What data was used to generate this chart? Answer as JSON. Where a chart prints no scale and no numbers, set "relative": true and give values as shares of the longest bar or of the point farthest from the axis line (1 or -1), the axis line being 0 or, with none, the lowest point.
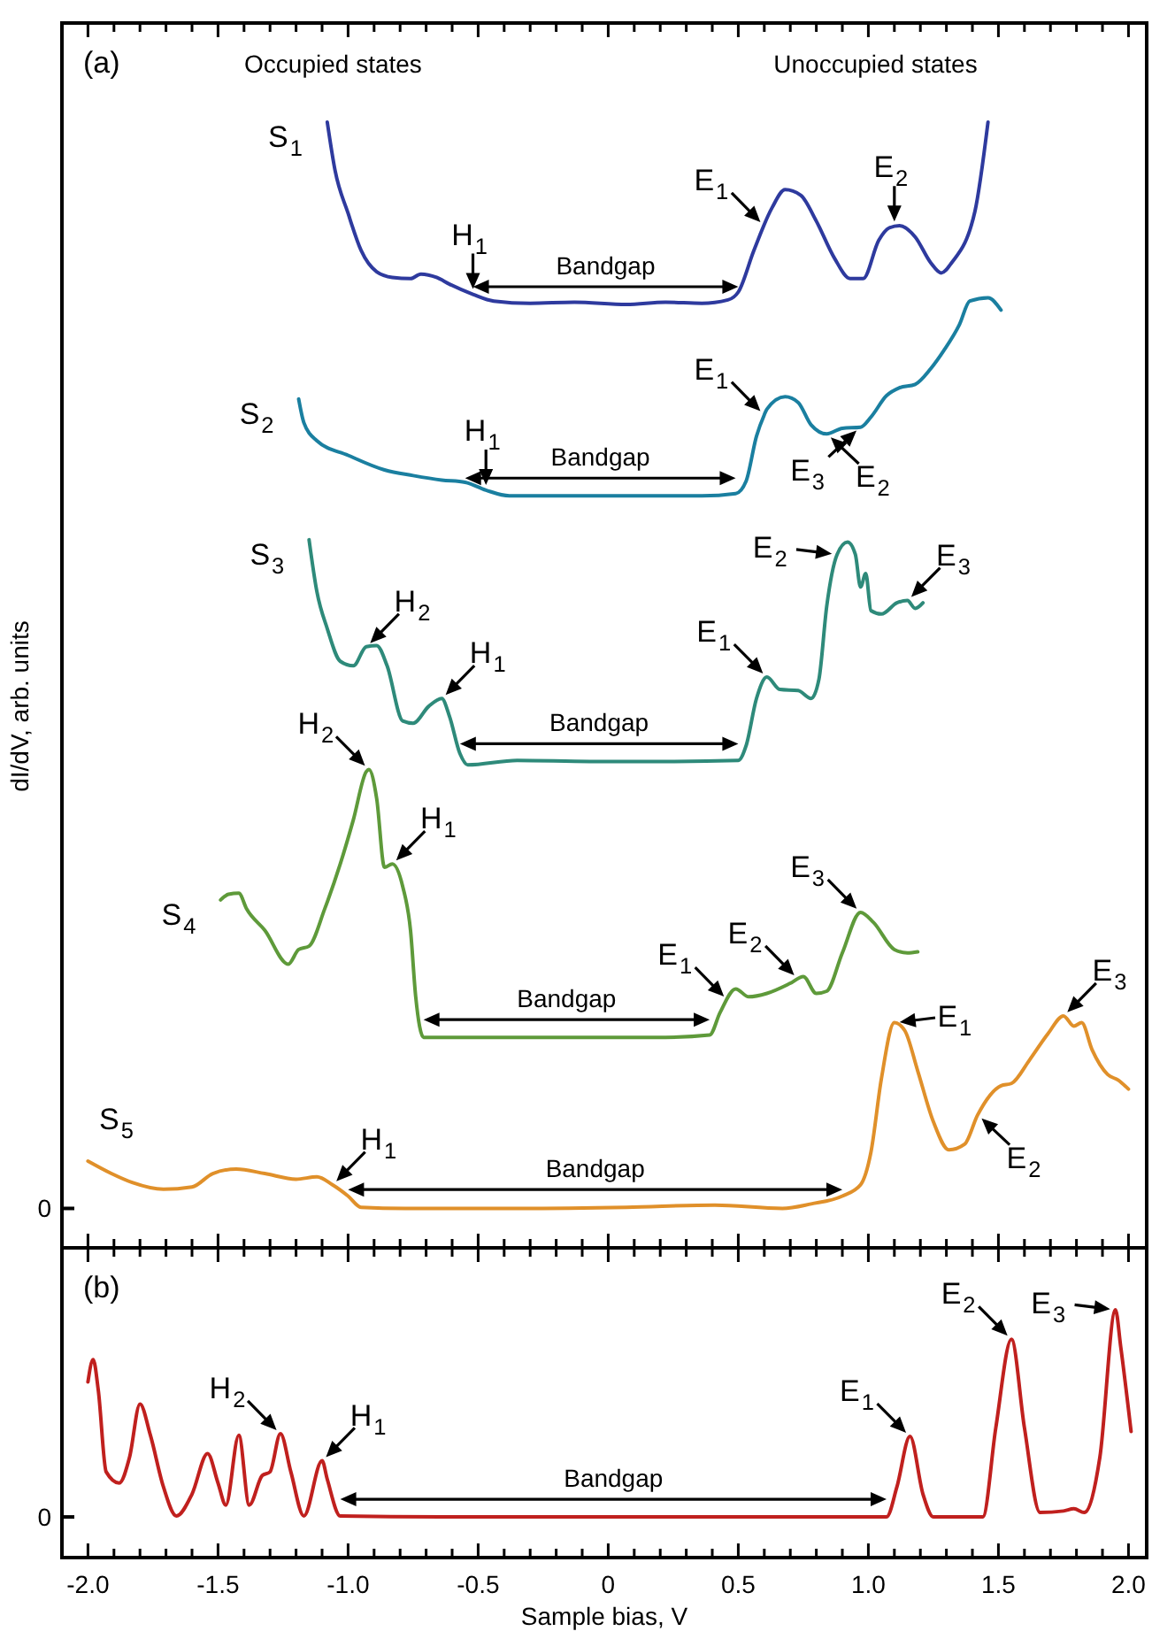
{
  "chart_data": [
    {
      "type": "line",
      "relative": true,
      "tick_labels": false,
      "ylabel": "dI/dV, arb. units",
      "xlim": [
        -2.1,
        2.07
      ],
      "xticks": [
        {
          "value": -2,
          "label": null
        },
        {
          "value": -1.9,
          "label": null
        },
        {
          "value": -1.8,
          "label": null
        },
        {
          "value": -1.7,
          "label": null
        },
        {
          "value": -1.6,
          "label": null
        },
        {
          "value": -1.5,
          "label": null
        },
        {
          "value": -1.4,
          "label": null
        },
        {
          "value": -1.3,
          "label": null
        },
        {
          "value": -1.2,
          "label": null
        },
        {
          "value": -1.1,
          "label": null
        },
        {
          "value": -1,
          "label": null
        },
        {
          "value": -0.9,
          "label": null
        },
        {
          "value": -0.8,
          "label": null
        },
        {
          "value": -0.7,
          "label": null
        },
        {
          "value": -0.6,
          "label": null
        },
        {
          "value": -0.5,
          "label": null
        },
        {
          "value": -0.4,
          "label": null
        },
        {
          "value": -0.3,
          "label": null
        },
        {
          "value": -0.2,
          "label": null
        },
        {
          "value": -0.1,
          "label": null
        },
        {
          "value": 0,
          "label": null
        },
        {
          "value": 0.1,
          "label": null
        },
        {
          "value": 0.2,
          "label": null
        },
        {
          "value": 0.3,
          "label": null
        },
        {
          "value": 0.4,
          "label": null
        },
        {
          "value": 0.5,
          "label": null
        },
        {
          "value": 0.6,
          "label": null
        },
        {
          "value": 0.7,
          "label": null
        },
        {
          "value": 0.8,
          "label": null
        },
        {
          "value": 0.9,
          "label": null
        },
        {
          "value": 1,
          "label": null
        },
        {
          "value": 1.1,
          "label": null
        },
        {
          "value": 1.2,
          "label": null
        },
        {
          "value": 1.3,
          "label": null
        },
        {
          "value": 1.4,
          "label": null
        },
        {
          "value": 1.5,
          "label": null
        },
        {
          "value": 1.6,
          "label": null
        },
        {
          "value": 1.7,
          "label": null
        },
        {
          "value": 1.8,
          "label": null
        },
        {
          "value": 1.9,
          "label": null
        },
        {
          "value": 2,
          "label": null
        }
      ],
      "series": [
        {
          "name": "S$_{1}$",
          "color": "#2e3a9e",
          "x": [
            -1.08,
            -1.05,
            -1.0,
            -0.95,
            -0.89,
            -0.83,
            -0.76,
            -0.72,
            -0.66,
            -0.61,
            -0.52,
            -0.44,
            -0.3,
            -0.13,
            0.07,
            0.22,
            0.36,
            0.46,
            0.5,
            0.56,
            0.63,
            0.68,
            0.74,
            0.8,
            0.87,
            0.93,
            0.98,
            1.04,
            1.08,
            1.12,
            1.18,
            1.24,
            1.28,
            1.32,
            1.41,
            1.46
          ],
          "values": [
            1.0,
            0.957,
            0.919,
            0.886,
            0.867,
            0.862,
            0.861,
            0.865,
            0.862,
            0.856,
            0.847,
            0.841,
            0.839,
            0.84,
            0.838,
            0.84,
            0.839,
            0.842,
            0.849,
            0.886,
            0.924,
            0.94,
            0.935,
            0.912,
            0.879,
            0.861,
            0.861,
            0.895,
            0.906,
            0.908,
            0.898,
            0.875,
            0.866,
            0.875,
            0.921,
            1.0
          ]
        },
        {
          "name": "S$_{2}$",
          "color": "#1a7fa0",
          "x": [
            -1.19,
            -1.17,
            -1.12,
            -1.0,
            -0.86,
            -0.75,
            -0.64,
            -0.55,
            -0.47,
            -0.38,
            -0.21,
            0.07,
            0.36,
            0.49,
            0.53,
            0.57,
            0.6,
            0.61,
            0.68,
            0.73,
            0.78,
            0.84,
            0.9,
            0.97,
            1.01,
            1.07,
            1.12,
            1.18,
            1.24,
            1.29,
            1.35,
            1.39,
            1.46,
            1.51
          ],
          "values": [
            0.754,
            0.733,
            0.717,
            0.704,
            0.691,
            0.686,
            0.682,
            0.68,
            0.673,
            0.668,
            0.668,
            0.668,
            0.668,
            0.67,
            0.681,
            0.721,
            0.74,
            0.745,
            0.756,
            0.751,
            0.731,
            0.723,
            0.728,
            0.729,
            0.738,
            0.757,
            0.764,
            0.767,
            0.781,
            0.797,
            0.82,
            0.841,
            0.844,
            0.833
          ]
        },
        {
          "name": "S$_{3}$",
          "color": "#2e8a7a",
          "x": [
            -1.15,
            -1.12,
            -1.08,
            -1.03,
            -0.98,
            -0.93,
            -0.89,
            -0.85,
            -0.79,
            -0.75,
            -0.69,
            -0.64,
            -0.61,
            -0.57,
            -0.54,
            -0.35,
            -0.07,
            0.22,
            0.5,
            0.53,
            0.57,
            0.61,
            0.66,
            0.73,
            0.78,
            0.81,
            0.84,
            0.88,
            0.92,
            0.95,
            0.97,
            0.99,
            1.01,
            1.05,
            1.11,
            1.15,
            1.18,
            1.21
          ],
          "values": [
            0.629,
            0.583,
            0.55,
            0.521,
            0.517,
            0.534,
            0.535,
            0.517,
            0.468,
            0.466,
            0.481,
            0.488,
            0.472,
            0.439,
            0.429,
            0.433,
            0.432,
            0.432,
            0.433,
            0.446,
            0.488,
            0.507,
            0.496,
            0.495,
            0.488,
            0.505,
            0.57,
            0.616,
            0.627,
            0.616,
            0.587,
            0.599,
            0.566,
            0.563,
            0.573,
            0.575,
            0.568,
            0.573
          ]
        },
        {
          "name": "S$_{4}$",
          "color": "#5e9a3a",
          "x": [
            -1.49,
            -1.46,
            -1.42,
            -1.39,
            -1.32,
            -1.23,
            -1.19,
            -1.15,
            -1.09,
            -1.03,
            -0.98,
            -0.93,
            -0.92,
            -0.89,
            -0.86,
            -0.83,
            -0.79,
            -0.76,
            -0.74,
            -0.71,
            -0.49,
            -0.07,
            0.22,
            0.39,
            0.43,
            0.49,
            0.54,
            0.61,
            0.7,
            0.75,
            0.8,
            0.84,
            0.9,
            0.97,
            1.02,
            1.1,
            1.15,
            1.19
          ],
          "values": [
            0.309,
            0.314,
            0.315,
            0.301,
            0.282,
            0.252,
            0.265,
            0.268,
            0.301,
            0.341,
            0.38,
            0.423,
            0.425,
            0.399,
            0.338,
            0.341,
            0.321,
            0.282,
            0.223,
            0.187,
            0.187,
            0.187,
            0.187,
            0.189,
            0.209,
            0.23,
            0.223,
            0.226,
            0.235,
            0.241,
            0.226,
            0.228,
            0.262,
            0.298,
            0.289,
            0.265,
            0.262,
            0.263
          ]
        },
        {
          "name": "S$_{5}$",
          "color": "#e0902a",
          "x": [
            -2.0,
            -1.91,
            -1.83,
            -1.71,
            -1.6,
            -1.52,
            -1.43,
            -1.32,
            -1.2,
            -1.12,
            -1.06,
            -1.0,
            -0.95,
            -0.78,
            -0.35,
            0.07,
            0.41,
            0.67,
            0.78,
            0.9,
            0.97,
            1.01,
            1.05,
            1.1,
            1.14,
            1.19,
            1.25,
            1.31,
            1.37,
            1.42,
            1.51,
            1.55,
            1.62,
            1.69,
            1.75,
            1.79,
            1.82,
            1.86,
            1.92,
            1.96,
            2.0
          ],
          "values": [
            0.077,
            0.066,
            0.058,
            0.052,
            0.054,
            0.066,
            0.07,
            0.066,
            0.061,
            0.063,
            0.056,
            0.046,
            0.036,
            0.035,
            0.035,
            0.036,
            0.038,
            0.035,
            0.039,
            0.046,
            0.056,
            0.085,
            0.15,
            0.2,
            0.193,
            0.157,
            0.112,
            0.087,
            0.092,
            0.118,
            0.144,
            0.146,
            0.167,
            0.19,
            0.206,
            0.197,
            0.2,
            0.176,
            0.154,
            0.149,
            0.141
          ]
        }
      ],
      "annotations": [
        "(a)",
        "Occupied states",
        "Unoccupied states",
        "0",
        {
          "text": "Bandgap",
          "x": 0.07,
          "y": 0.838
        },
        {
          "text": "Bandgap",
          "x": 0.07,
          "y": 0.668
        },
        {
          "text": "Bandgap",
          "x": -0.07,
          "y": 0.432
        },
        {
          "text": "Bandgap",
          "x": -0.07,
          "y": 0.187
        },
        {
          "text": "Bandgap",
          "x": 0.07,
          "y": 0.036
        },
        {
          "text": "H$_{1}$",
          "x": -0.52,
          "y": 0.847
        },
        {
          "text": "E$_{1}$",
          "x": 0.6,
          "y": 0.908
        },
        {
          "text": "E$_{2}$",
          "x": 1.1,
          "y": 0.907
        },
        {
          "text": "H$_{1}$",
          "x": -0.47,
          "y": 0.673
        },
        {
          "text": "E$_{1}$",
          "x": 0.6,
          "y": 0.74
        },
        {
          "text": "E$_{2}$",
          "x": 0.84,
          "y": 0.723
        },
        {
          "text": "E$_{3}$",
          "x": 0.97,
          "y": 0.729
        },
        {
          "text": "H$_{2}$",
          "x": -0.93,
          "y": 0.534
        },
        {
          "text": "H$_{1}$",
          "x": -0.64,
          "y": 0.488
        },
        {
          "text": "E$_{1}$",
          "x": 0.61,
          "y": 0.507
        },
        {
          "text": "E$_{2}$",
          "x": 0.88,
          "y": 0.616
        },
        {
          "text": "E$_{3}$",
          "x": 1.15,
          "y": 0.575
        },
        {
          "text": "H$_{2}$",
          "x": -0.92,
          "y": 0.425
        },
        {
          "text": "H$_{1}$",
          "x": -0.83,
          "y": 0.341
        },
        {
          "text": "E$_{1}$",
          "x": 0.46,
          "y": 0.22
        },
        {
          "text": "E$_{2}$",
          "x": 0.73,
          "y": 0.239
        },
        {
          "text": "E$_{3}$",
          "x": 0.97,
          "y": 0.298
        },
        {
          "text": "H$_{1}$",
          "x": -1.06,
          "y": 0.056
        },
        {
          "text": "E$_{1}$",
          "x": 1.1,
          "y": 0.2
        },
        {
          "text": "E$_{2}$",
          "x": 1.42,
          "y": 0.118
        },
        {
          "text": "E$_{3}$",
          "x": 1.75,
          "y": 0.206
        }
      ]
    },
    {
      "type": "line",
      "relative": true,
      "tick_labels": "x",
      "xlabel": "Sample bias, V",
      "xlim": [
        -2.1,
        2.07
      ],
      "xticks": [
        {
          "value": -2,
          "label": "-2.0"
        },
        {
          "value": -1.9,
          "label": null
        },
        {
          "value": -1.8,
          "label": null
        },
        {
          "value": -1.7,
          "label": null
        },
        {
          "value": -1.6,
          "label": null
        },
        {
          "value": -1.5,
          "label": "-1.5"
        },
        {
          "value": -1.4,
          "label": null
        },
        {
          "value": -1.3,
          "label": null
        },
        {
          "value": -1.2,
          "label": null
        },
        {
          "value": -1.1,
          "label": null
        },
        {
          "value": -1,
          "label": "-1.0"
        },
        {
          "value": -0.9,
          "label": null
        },
        {
          "value": -0.8,
          "label": null
        },
        {
          "value": -0.7,
          "label": null
        },
        {
          "value": -0.6,
          "label": null
        },
        {
          "value": -0.5,
          "label": "-0.5"
        },
        {
          "value": -0.4,
          "label": null
        },
        {
          "value": -0.3,
          "label": null
        },
        {
          "value": -0.2,
          "label": null
        },
        {
          "value": -0.1,
          "label": null
        },
        0,
        {
          "value": 0.1,
          "label": null
        },
        {
          "value": 0.2,
          "label": null
        },
        {
          "value": 0.3,
          "label": null
        },
        {
          "value": 0.4,
          "label": null
        },
        0.5,
        {
          "value": 0.6,
          "label": null
        },
        {
          "value": 0.7,
          "label": null
        },
        {
          "value": 0.8,
          "label": null
        },
        {
          "value": 0.9,
          "label": null
        },
        {
          "value": 1,
          "label": "1.0"
        },
        {
          "value": 1.1,
          "label": null
        },
        {
          "value": 1.2,
          "label": null
        },
        {
          "value": 1.3,
          "label": null
        },
        {
          "value": 1.4,
          "label": null
        },
        1.5,
        {
          "value": 1.6,
          "label": null
        },
        {
          "value": 1.7,
          "label": null
        },
        {
          "value": 1.8,
          "label": null
        },
        {
          "value": 1.9,
          "label": null
        },
        {
          "value": 2,
          "label": "2.0"
        }
      ],
      "series": [
        {
          "color": "#c0201e",
          "x": [
            -2.0,
            -1.98,
            -1.96,
            -1.93,
            -1.88,
            -1.84,
            -1.8,
            -1.76,
            -1.71,
            -1.66,
            -1.6,
            -1.54,
            -1.5,
            -1.47,
            -1.42,
            -1.38,
            -1.33,
            -1.3,
            -1.26,
            -1.22,
            -1.17,
            -1.1,
            -1.08,
            -1.03,
            -0.64,
            0.0,
            1.07,
            1.11,
            1.16,
            1.21,
            1.25,
            1.44,
            1.49,
            1.55,
            1.6,
            1.66,
            1.75,
            1.79,
            1.83,
            1.89,
            1.95,
            1.97,
            2.01
          ],
          "values": [
            0.709,
            0.799,
            0.673,
            0.346,
            0.301,
            0.405,
            0.62,
            0.494,
            0.286,
            0.168,
            0.256,
            0.42,
            0.301,
            0.212,
            0.494,
            0.212,
            0.331,
            0.346,
            0.5,
            0.346,
            0.168,
            0.391,
            0.316,
            0.168,
            0.164,
            0.164,
            0.164,
            0.286,
            0.489,
            0.256,
            0.164,
            0.164,
            0.524,
            0.881,
            0.524,
            0.182,
            0.188,
            0.197,
            0.182,
            0.405,
            1.0,
            0.852,
            0.509
          ]
        }
      ],
      "annotations": [
        "(b)",
        "0",
        {
          "text": "Bandgap",
          "x": 0.0,
          "y": 0.164
        },
        {
          "text": "H$_{2}$",
          "x": -1.26,
          "y": 0.5
        },
        {
          "text": "H$_{1}$",
          "x": -1.1,
          "y": 0.391
        },
        {
          "text": "E$_{1}$",
          "x": 1.16,
          "y": 0.489
        },
        {
          "text": "E$_{2}$",
          "x": 1.55,
          "y": 0.881
        },
        {
          "text": "E$_{3}$",
          "x": 1.95,
          "y": 1.0
        }
      ]
    }
  ]
}
